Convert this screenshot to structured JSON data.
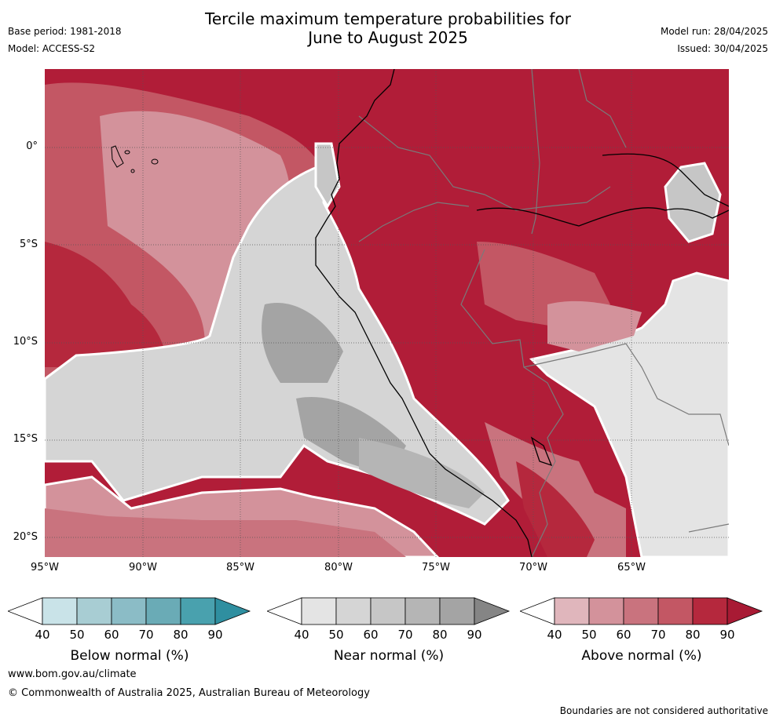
{
  "header": {
    "title_line1": "Tercile maximum temperature probabilities for",
    "title_line2": "June to August 2025",
    "base_period": "Base period: 1981-2018",
    "model": "Model: ACCESS-S2",
    "model_run": "Model run: 28/04/2025",
    "issued": "Issued: 30/04/2025"
  },
  "map": {
    "lat_labels": [
      "0°",
      "5°S",
      "10°S",
      "15°S",
      "20°S"
    ],
    "lon_labels": [
      "95°W",
      "90°W",
      "85°W",
      "80°W",
      "75°W",
      "70°W",
      "65°W"
    ]
  },
  "legends": [
    {
      "title": "Below normal (%)",
      "ticks": [
        "40",
        "50",
        "60",
        "70",
        "80",
        "90"
      ],
      "colors": [
        "#c9e3e8",
        "#a8cdd3",
        "#8bbcc6",
        "#6aabb6",
        "#49a1ae",
        "#2f8fa0"
      ]
    },
    {
      "title": "Near normal (%)",
      "ticks": [
        "40",
        "50",
        "60",
        "70",
        "80",
        "90"
      ],
      "colors": [
        "#e4e4e4",
        "#d5d5d5",
        "#c6c6c6",
        "#b5b5b5",
        "#a4a4a4",
        "#858585"
      ]
    },
    {
      "title": "Above normal (%)",
      "ticks": [
        "40",
        "50",
        "60",
        "70",
        "80",
        "90"
      ],
      "colors": [
        "#e0b6bc",
        "#d3929b",
        "#c9737e",
        "#c35764",
        "#b5283d",
        "#a81a34"
      ]
    }
  ],
  "footer": {
    "website": "www.bom.gov.au/climate",
    "copyright": "© Commonwealth of Australia 2025, Australian Bureau of Meteorology",
    "disclaimer": "Boundaries are not considered authoritative"
  }
}
